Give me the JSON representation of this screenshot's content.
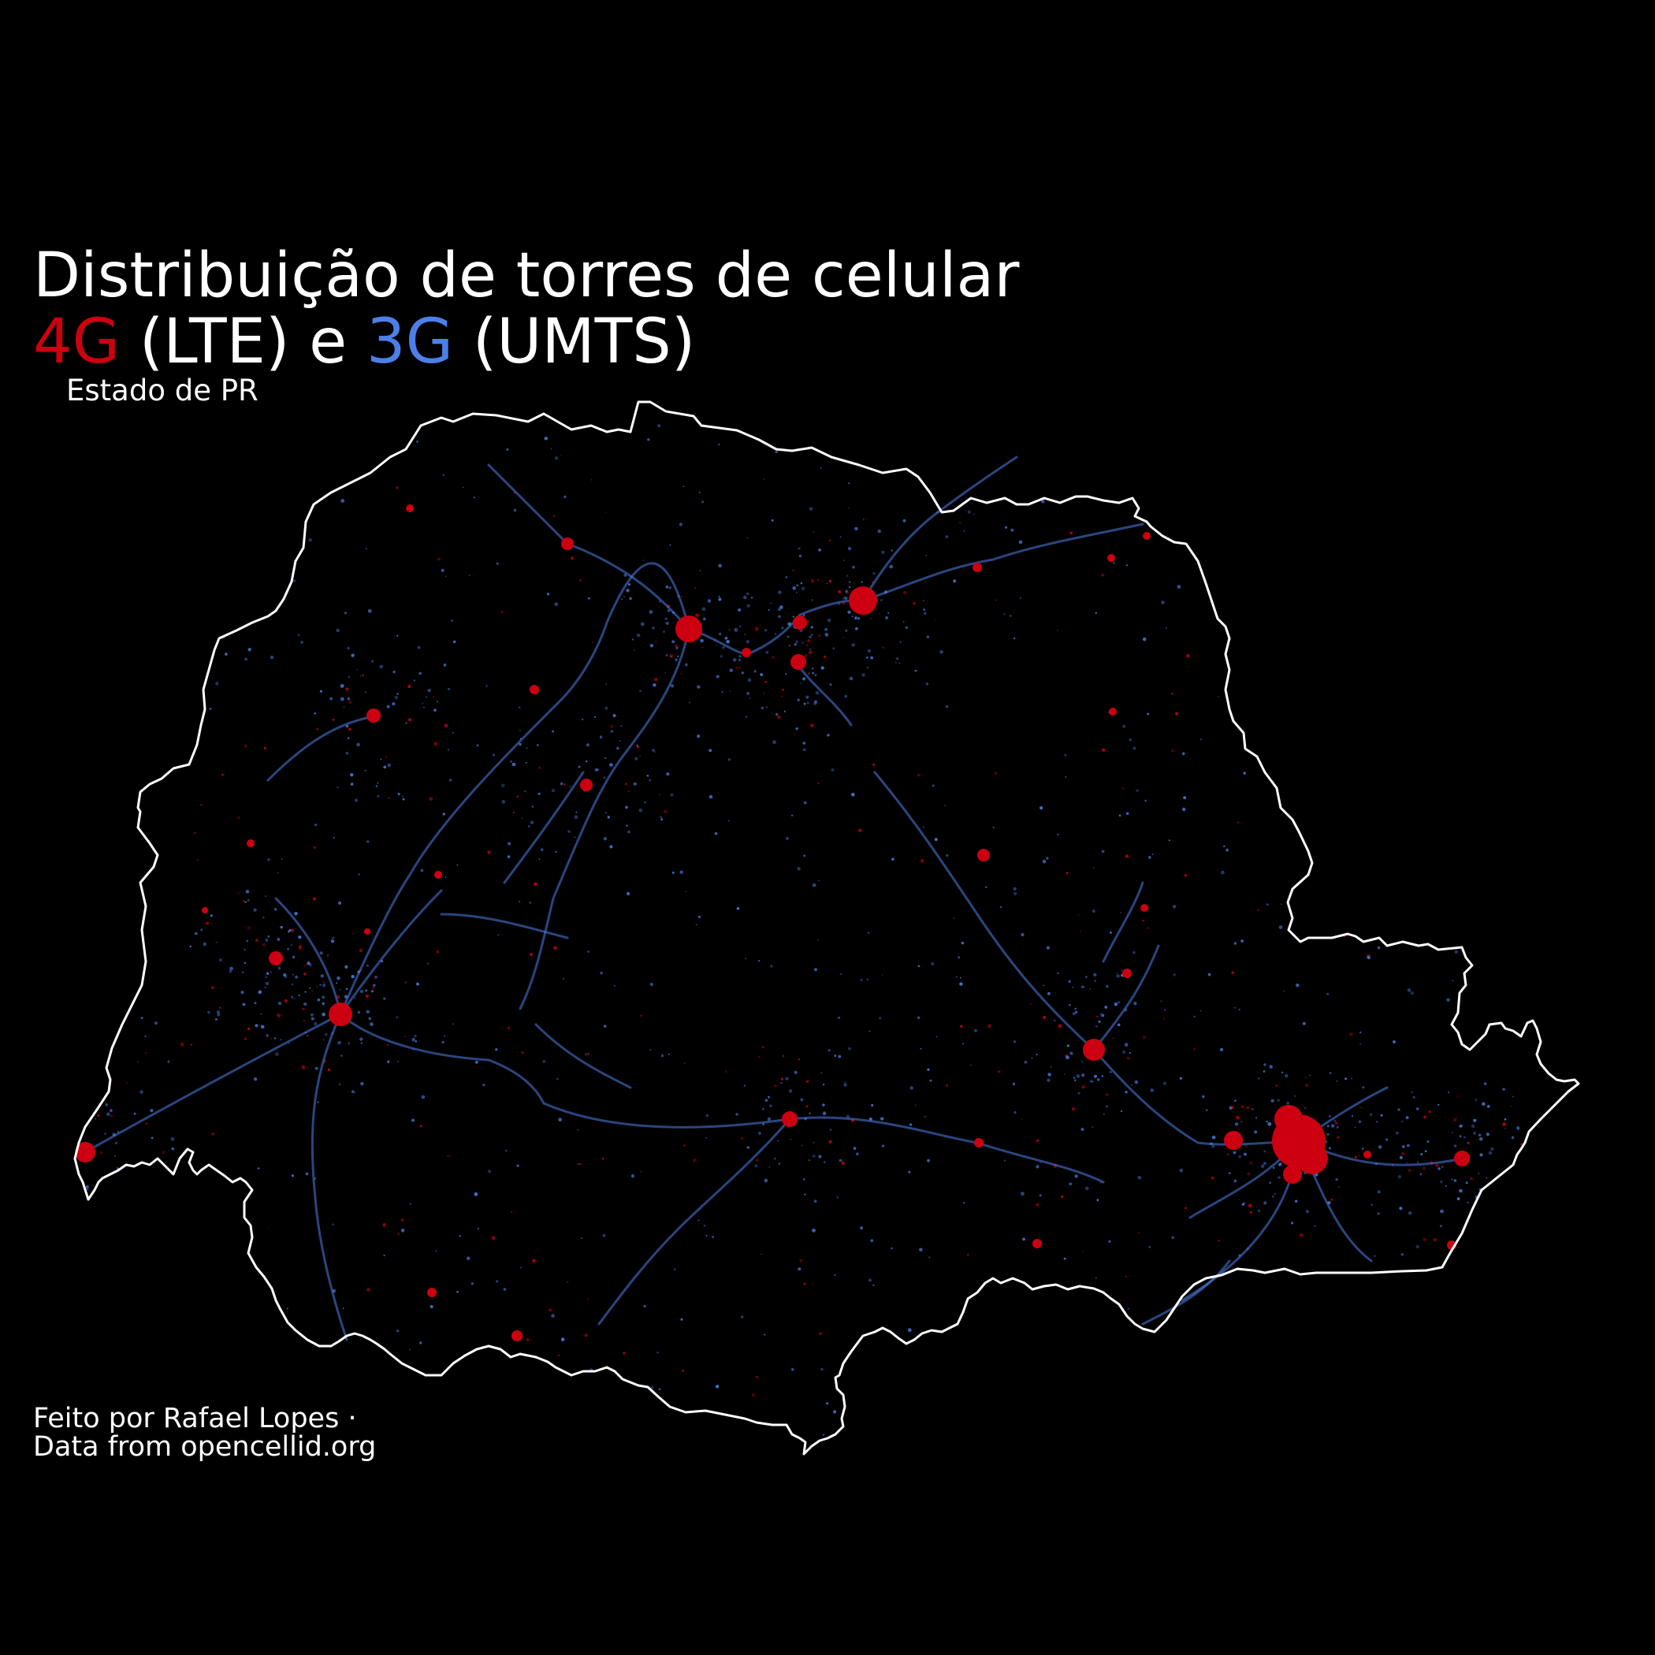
{
  "title": {
    "line1": "Distribuição de torres de celular",
    "lte_label": "4G",
    "lte_suffix": " (LTE) e ",
    "umts_label": "3G",
    "umts_suffix": " (UMTS)"
  },
  "subtitle": "Estado de PR",
  "credits": {
    "line1": "Feito por Rafael Lopes ·",
    "line2": "Data from opencellid.org"
  },
  "colors": {
    "background": "#000000",
    "lte": "#cc0011",
    "umts": "#4d7fe8",
    "border": "#ffffff",
    "text": "#ffffff"
  },
  "legend": [
    {
      "label": "4G",
      "technology": "LTE",
      "color": "#cc0011"
    },
    {
      "label": "3G",
      "technology": "UMTS",
      "color": "#4d7fe8"
    }
  ]
}
